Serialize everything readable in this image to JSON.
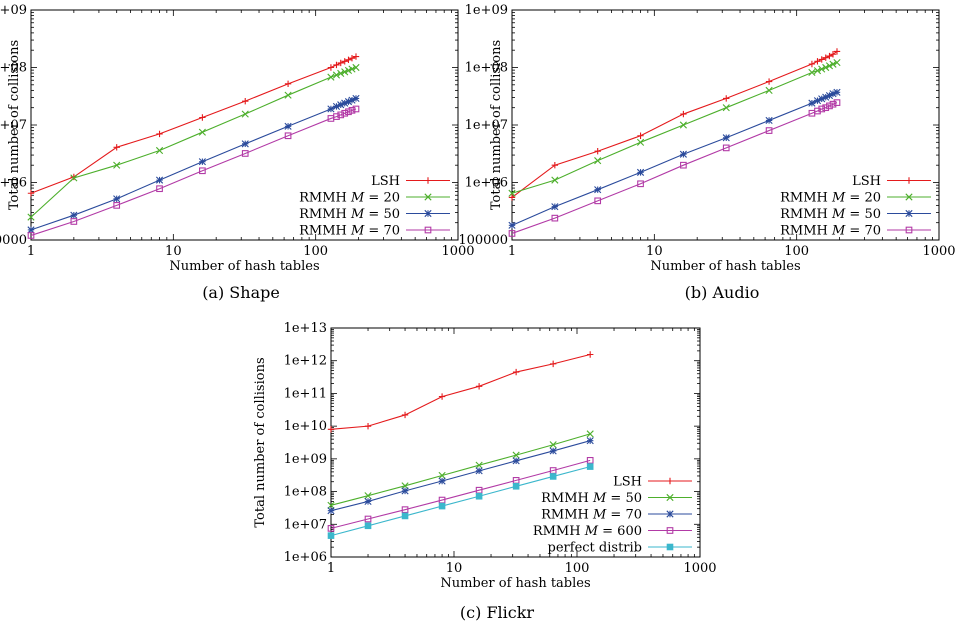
{
  "chart_data": [
    {
      "type": "line",
      "caption": "(a) Shape",
      "xlabel": "Number of hash tables",
      "ylabel": "Total number of collisions",
      "xscale": "log",
      "yscale": "log",
      "xlim": [
        1,
        1000
      ],
      "ylim": [
        100000,
        1000000000
      ],
      "xticks": [
        1,
        10,
        100,
        1000
      ],
      "xtick_labels": [
        "1",
        "10",
        "100",
        "1000"
      ],
      "yticks": [
        100000,
        1000000,
        10000000,
        100000000,
        1000000000
      ],
      "ytick_labels": [
        "100000",
        "1e+06",
        "1e+07",
        "1e+08",
        "1e+09"
      ],
      "grid": false,
      "legend_position": "bottom-right",
      "x": [
        1,
        2,
        4,
        8,
        16,
        32,
        64,
        128,
        140,
        150,
        160,
        170,
        180,
        192
      ],
      "series": [
        {
          "name": "LSH",
          "name_html": "LSH",
          "color": "#e41a1c",
          "marker": "plus",
          "values": [
            650000,
            1250000,
            4100000,
            7000000,
            13500000,
            26000000,
            52000000,
            100000000,
            111000000,
            120000000,
            128000000,
            136000000,
            145000000,
            155000000
          ]
        },
        {
          "name": "RMMH M = 20",
          "name_html": "RMMH <tspan font-style='italic'>M</tspan> = 20",
          "color": "#4daf2c",
          "marker": "cross",
          "values": [
            250000,
            1200000,
            2000000,
            3600000,
            7500000,
            15500000,
            33000000,
            68000000,
            74000000,
            79000000,
            84000000,
            89000000,
            94000000,
            100000000
          ]
        },
        {
          "name": "RMMH M = 50",
          "name_html": "RMMH <tspan font-style='italic'>M</tspan> = 50",
          "color": "#2b4b9c",
          "marker": "star",
          "values": [
            150000,
            270000,
            520000,
            1100000,
            2300000,
            4700000,
            9500000,
            19000000,
            21000000,
            22500000,
            24000000,
            25500000,
            27000000,
            29000000
          ]
        },
        {
          "name": "RMMH M = 70",
          "name_html": "RMMH <tspan font-style='italic'>M</tspan> = 70",
          "color": "#b23aa6",
          "marker": "square",
          "values": [
            120000,
            210000,
            400000,
            780000,
            1600000,
            3200000,
            6500000,
            13000000,
            14000000,
            15000000,
            16000000,
            17000000,
            18000000,
            19000000
          ]
        }
      ]
    },
    {
      "type": "line",
      "caption": "(b) Audio",
      "xlabel": "Number of hash tables",
      "ylabel": "Total number of collisions",
      "xscale": "log",
      "yscale": "log",
      "xlim": [
        1,
        1000
      ],
      "ylim": [
        100000,
        1000000000
      ],
      "xticks": [
        1,
        10,
        100,
        1000
      ],
      "xtick_labels": [
        "1",
        "10",
        "100",
        "1000"
      ],
      "yticks": [
        100000,
        1000000,
        10000000,
        100000000,
        1000000000
      ],
      "ytick_labels": [
        "100000",
        "1e+06",
        "1e+07",
        "1e+08",
        "1e+09"
      ],
      "grid": false,
      "legend_position": "bottom-right",
      "x": [
        1,
        2,
        4,
        8,
        16,
        32,
        64,
        128,
        140,
        150,
        160,
        170,
        180,
        192
      ],
      "series": [
        {
          "name": "LSH",
          "name_html": "LSH",
          "color": "#e41a1c",
          "marker": "plus",
          "values": [
            550000,
            2000000,
            3500000,
            6500000,
            15500000,
            29000000,
            57000000,
            115000000,
            128000000,
            138000000,
            148000000,
            158000000,
            170000000,
            190000000
          ]
        },
        {
          "name": "RMMH M = 20",
          "name_html": "RMMH <tspan font-style='italic'>M</tspan> = 20",
          "color": "#4daf2c",
          "marker": "cross",
          "values": [
            650000,
            1100000,
            2400000,
            5000000,
            10000000,
            20000000,
            40000000,
            82000000,
            88000000,
            94000000,
            100000000,
            107000000,
            114000000,
            122000000
          ]
        },
        {
          "name": "RMMH M = 50",
          "name_html": "RMMH <tspan font-style='italic'>M</tspan> = 50",
          "color": "#2b4b9c",
          "marker": "star",
          "values": [
            180000,
            380000,
            750000,
            1500000,
            3100000,
            6000000,
            12000000,
            24000000,
            26500000,
            28500000,
            30500000,
            32500000,
            35000000,
            37000000
          ]
        },
        {
          "name": "RMMH M = 70",
          "name_html": "RMMH <tspan font-style='italic'>M</tspan> = 70",
          "color": "#b23aa6",
          "marker": "square",
          "values": [
            130000,
            240000,
            480000,
            950000,
            2000000,
            4000000,
            8000000,
            16000000,
            17500000,
            19000000,
            20000000,
            21500000,
            23000000,
            24500000
          ]
        }
      ]
    },
    {
      "type": "line",
      "caption": "(c) Flickr",
      "xlabel": "Number of hash tables",
      "ylabel": "Total number of collisions",
      "xscale": "log",
      "yscale": "log",
      "xlim": [
        1,
        1000
      ],
      "ylim": [
        1000000,
        10000000000000
      ],
      "xticks": [
        1,
        10,
        100,
        1000
      ],
      "xtick_labels": [
        "1",
        "10",
        "100",
        "1000"
      ],
      "yticks": [
        1000000,
        10000000,
        100000000,
        1000000000,
        10000000000,
        100000000000,
        1000000000000,
        10000000000000
      ],
      "ytick_labels": [
        "1e+06",
        "1e+07",
        "1e+08",
        "1e+09",
        "1e+10",
        "1e+11",
        "1e+12",
        "1e+13"
      ],
      "grid": false,
      "legend_position": "bottom-right",
      "x": [
        1,
        2,
        4,
        8,
        16,
        32,
        64,
        128
      ],
      "series": [
        {
          "name": "LSH",
          "name_html": "LSH",
          "color": "#e41a1c",
          "marker": "plus",
          "values": [
            8000000000,
            10000000000,
            22000000000,
            80000000000,
            165000000000,
            450000000000,
            800000000000,
            1550000000000
          ]
        },
        {
          "name": "RMMH M = 50",
          "name_html": "RMMH <tspan font-style='italic'>M</tspan> = 50",
          "color": "#4daf2c",
          "marker": "cross",
          "values": [
            38000000,
            75000000,
            150000000,
            310000000,
            640000000,
            1300000000,
            2700000000,
            5800000000
          ]
        },
        {
          "name": "RMMH M = 70",
          "name_html": "RMMH <tspan font-style='italic'>M</tspan> = 70",
          "color": "#2b4b9c",
          "marker": "star",
          "values": [
            26000000,
            50000000,
            105000000,
            210000000,
            430000000,
            870000000,
            1750000000,
            3600000000
          ]
        },
        {
          "name": "RMMH M = 600",
          "name_html": "RMMH <tspan font-style='italic'>M</tspan> = 600",
          "color": "#b23aa6",
          "marker": "square",
          "values": [
            7500000,
            14500000,
            28000000,
            55000000,
            110000000,
            220000000,
            440000000,
            900000000
          ]
        },
        {
          "name": "perfect distrib",
          "name_html": "perfect distrib",
          "color": "#3bb7cc",
          "marker": "filled-square",
          "values": [
            4500000,
            9000000,
            18000000,
            36000000,
            72000000,
            145000000,
            290000000,
            580000000
          ]
        }
      ]
    }
  ]
}
